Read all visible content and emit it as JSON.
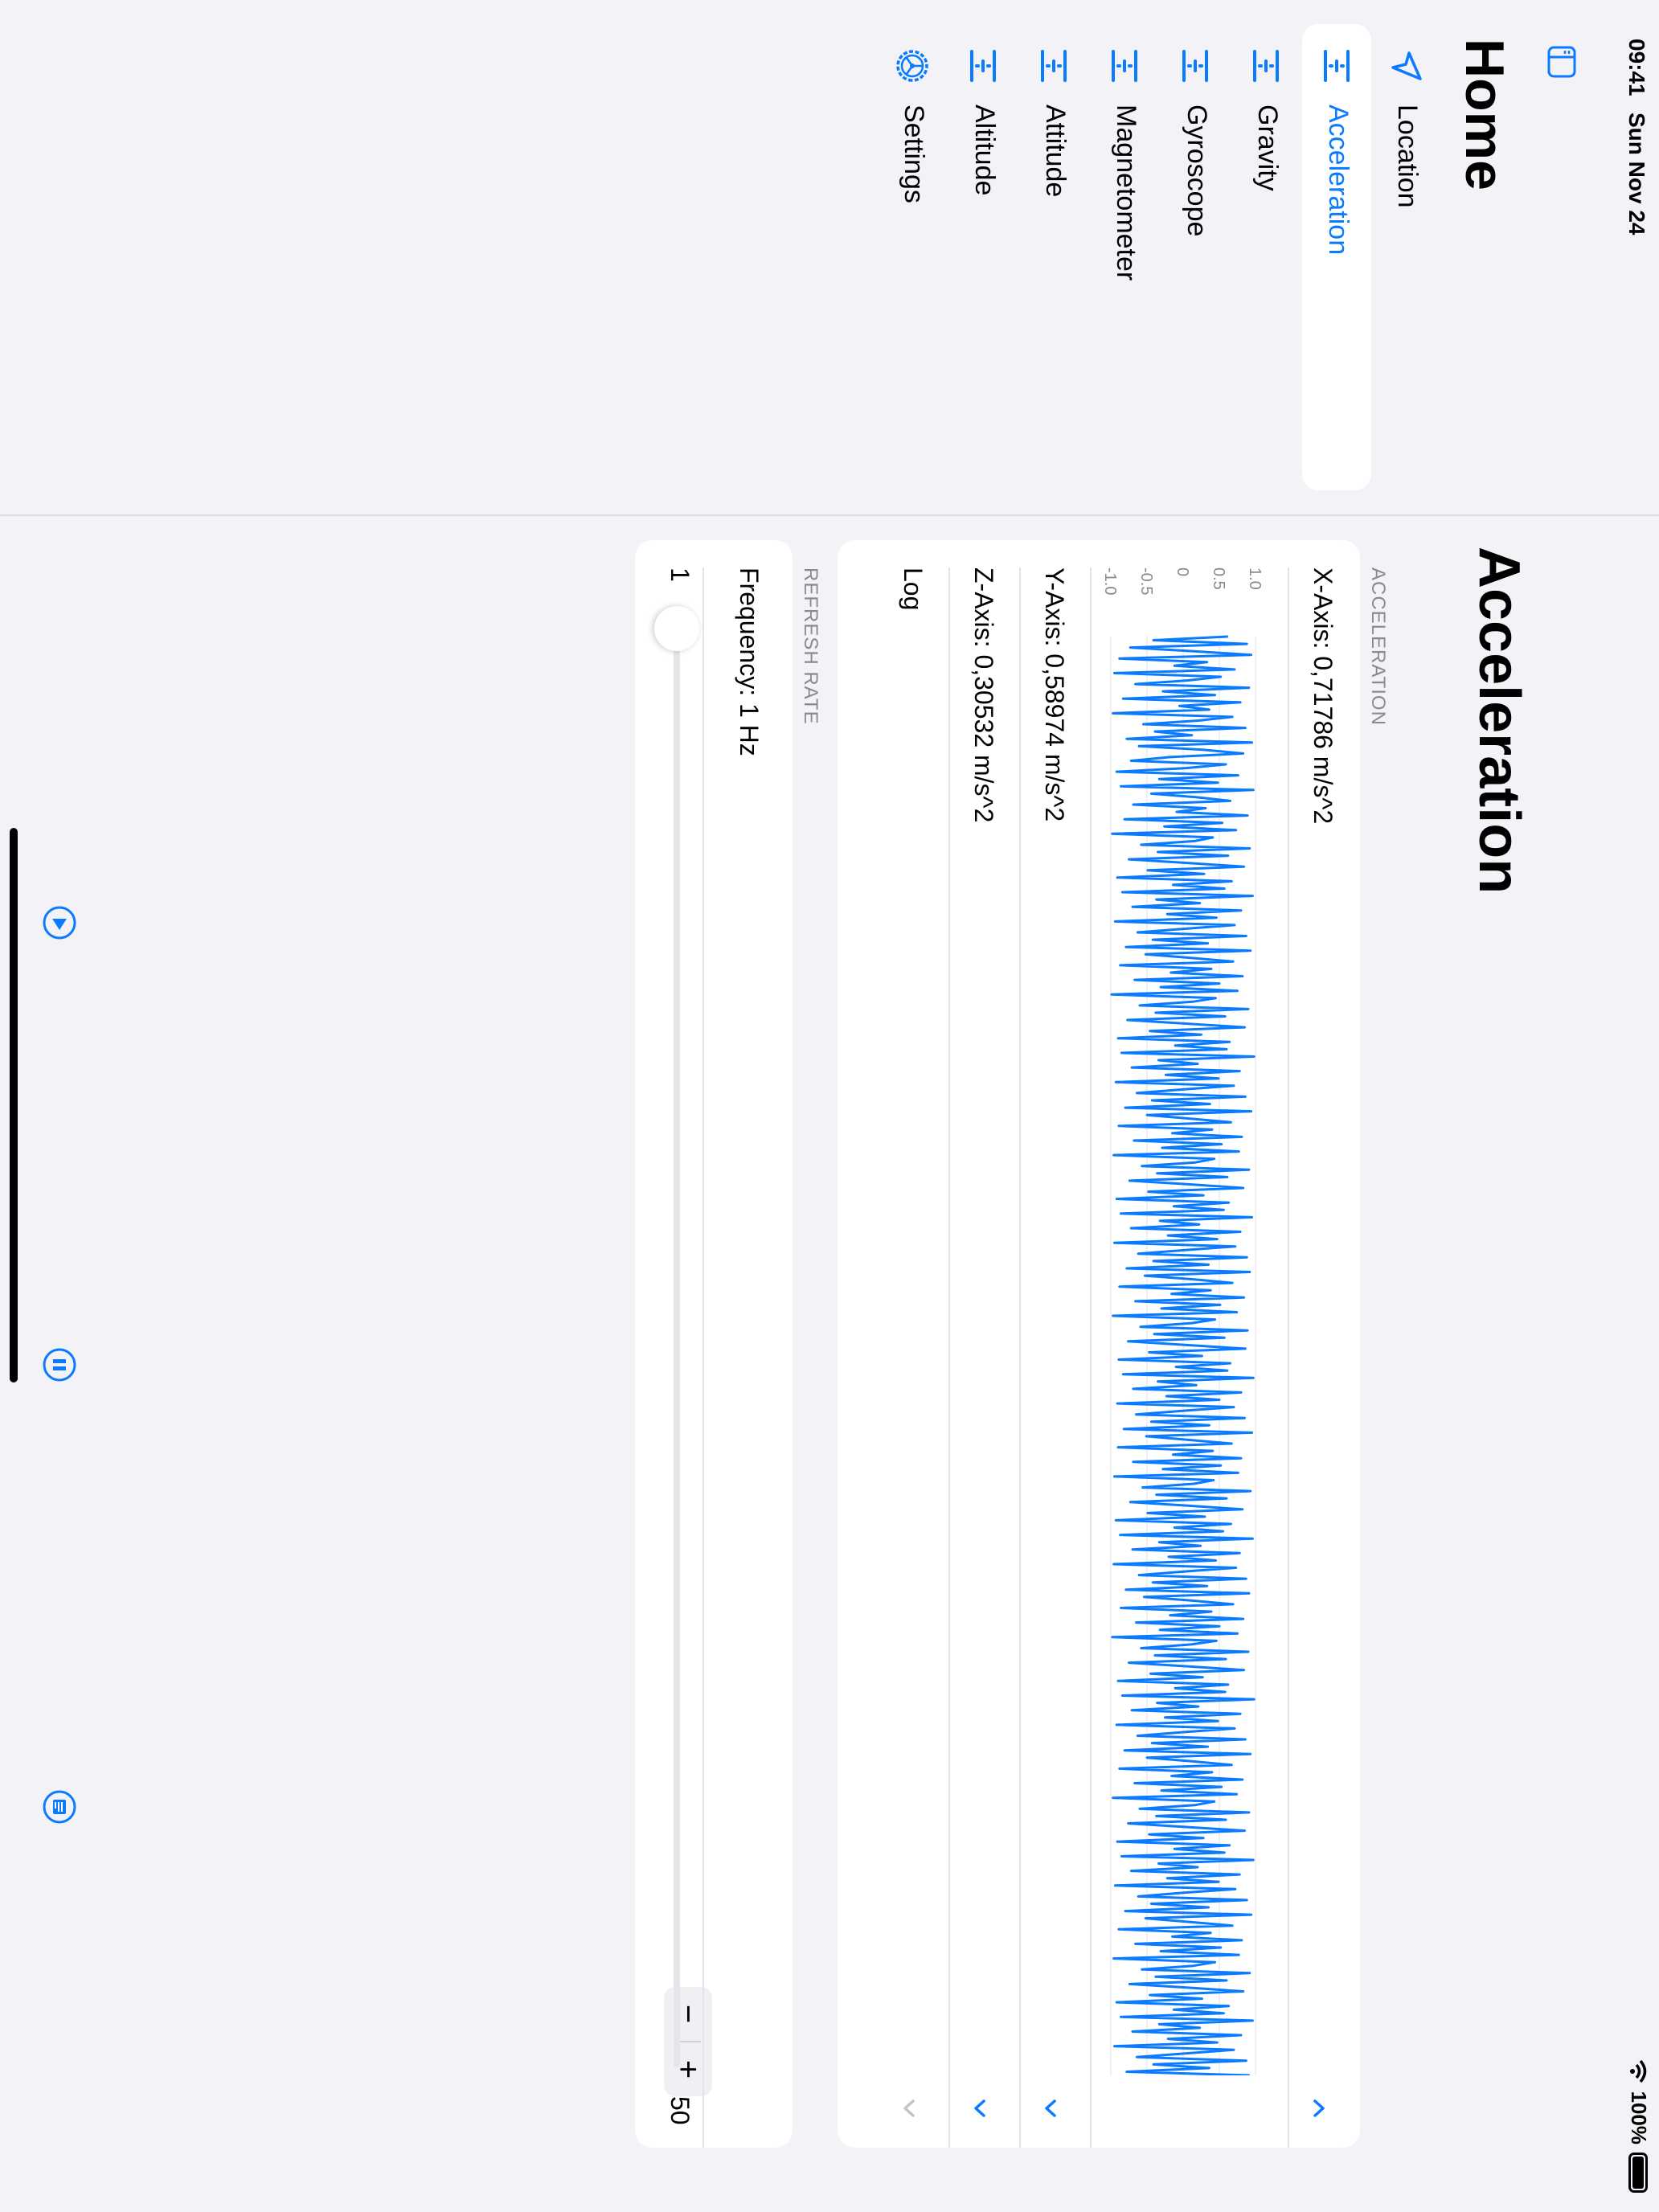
{
  "status": {
    "time": "09:41",
    "date": "Sun Nov 24",
    "battery": "100%"
  },
  "sidebar": {
    "title": "Home",
    "items": [
      {
        "label": "Location",
        "icon": "location-arrow-icon"
      },
      {
        "label": "Acceleration",
        "icon": "axis-icon",
        "selected": true
      },
      {
        "label": "Gravity",
        "icon": "axis-icon"
      },
      {
        "label": "Gyroscope",
        "icon": "axis-icon"
      },
      {
        "label": "Magnetometer",
        "icon": "axis-icon"
      },
      {
        "label": "Attitude",
        "icon": "axis-icon"
      },
      {
        "label": "Altitude",
        "icon": "axis-icon"
      },
      {
        "label": "Settings",
        "icon": "gear-icon"
      }
    ]
  },
  "main": {
    "title": "Acceleration",
    "acceleration_header": "ACCELERATION",
    "x_axis": "X-Axis: 0,71786 m/s^2",
    "y_axis": "Y-Axis: 0,58974 m/s^2",
    "z_axis": "Z-Axis: 0,30532 m/s^2",
    "log": "Log",
    "refresh_header": "REFRESH RATE",
    "frequency": "Frequency: 1 Hz",
    "stepper_minus": "−",
    "stepper_plus": "+",
    "slider_min": "1",
    "slider_max": "50",
    "slider_value": 1
  },
  "chart_data": {
    "type": "line",
    "yticks": [
      "1.0",
      "0.5",
      "0",
      "-0.5",
      "-1.0"
    ],
    "ylim": [
      -1.0,
      1.0
    ],
    "series": [
      {
        "values": [
          0.62,
          -0.41,
          0.88,
          -0.73,
          0.15,
          0.94,
          -0.88,
          0.33,
          -0.12,
          0.71,
          -0.95,
          0.52,
          0.07,
          -0.66,
          0.91,
          -0.28,
          0.44,
          -0.83,
          0.79,
          -0.05,
          0.36,
          -0.97,
          0.68,
          0.21,
          -0.55,
          0.86,
          -0.39,
          0.12,
          -0.78,
          0.95,
          -0.61,
          0.27,
          0.83,
          -0.18,
          -0.72,
          0.59,
          0.04,
          -0.92,
          0.76,
          -0.33,
          0.48,
          -0.86,
          0.97,
          -0.44,
          0.19,
          0.65,
          -0.69,
          0.31,
          -0.09,
          0.89,
          -0.81,
          0.54,
          -0.26,
          0.73,
          -0.98,
          0.41,
          0.16,
          -0.58,
          0.92,
          -0.35,
          0.62,
          -0.75,
          0.08,
          0.84,
          -0.49,
          0.29,
          -0.91,
          0.67,
          -0.14,
          0.57,
          -0.84,
          0.96,
          -0.37,
          0.23,
          -0.7,
          0.8,
          -0.22,
          0.46,
          -0.94,
          0.71,
          0.02,
          -0.63,
          0.87,
          -0.42,
          0.34,
          -0.79,
          0.93,
          -0.52,
          0.11,
          0.69,
          -0.87,
          0.39,
          -0.17,
          0.82,
          -0.67,
          0.5,
          -0.31,
          0.75,
          -0.99,
          0.45,
          0.13,
          -0.6,
          0.9,
          -0.38,
          0.58,
          -0.77,
          0.06,
          0.85,
          -0.46,
          0.25,
          -0.9,
          0.64,
          -0.11,
          0.6,
          -0.85,
          0.98,
          -0.34,
          0.2,
          -0.71,
          0.78,
          -0.24,
          0.49,
          -0.93,
          0.7,
          0.0,
          -0.64,
          0.86,
          -0.43,
          0.37,
          -0.8,
          0.94,
          -0.5,
          0.1,
          0.66,
          -0.89,
          0.4,
          -0.15,
          0.81,
          -0.68,
          0.53,
          -0.29,
          0.77,
          -0.96,
          0.43,
          0.17,
          -0.57,
          0.91,
          -0.36,
          0.61,
          -0.74,
          0.09,
          0.83,
          -0.48,
          0.28,
          -0.92,
          0.63,
          -0.13,
          0.56,
          -0.86,
          0.95,
          -0.32,
          0.22,
          -0.72,
          0.79,
          -0.21,
          0.47,
          -0.95,
          0.72,
          0.03,
          -0.62,
          0.88,
          -0.41,
          0.35,
          -0.78,
          0.92,
          -0.53,
          0.14,
          0.68,
          -0.88,
          0.38,
          -0.16,
          0.84,
          -0.66,
          0.51,
          -0.3,
          0.74,
          -0.97,
          0.44,
          0.12,
          -0.59,
          0.89,
          -0.4,
          0.57,
          -0.76,
          0.05,
          0.86,
          -0.47,
          0.26,
          -0.89,
          0.65,
          -0.1,
          0.61,
          -0.83,
          0.97,
          -0.35,
          0.18,
          -0.69,
          0.8,
          -0.23,
          0.5,
          -0.91,
          0.7,
          0.01,
          -0.65,
          0.85,
          -0.44,
          0.36,
          -0.82,
          0.95,
          -0.51,
          0.09,
          0.67,
          -0.9,
          0.41,
          -0.14,
          0.8,
          -0.69,
          0.52,
          -0.28,
          0.76,
          -0.95,
          0.42,
          0.15,
          -0.56,
          0.93,
          -0.37,
          0.6,
          -0.73,
          0.07,
          0.82,
          -0.49,
          0.3,
          -0.93,
          0.66,
          -0.12,
          0.55,
          -0.87,
          0.96,
          -0.33,
          0.24,
          -0.7,
          0.78,
          -0.2,
          0.45,
          -0.96,
          0.73,
          0.04,
          -0.61,
          0.87,
          -0.42,
          0.33,
          -0.79,
          0.91,
          -0.54,
          0.13,
          0.69,
          -0.86,
          0.39,
          -0.18,
          0.83,
          -0.65,
          0.5,
          -0.32,
          0.75,
          -0.98,
          0.46,
          0.11,
          -0.58,
          0.9,
          -0.39,
          0.59,
          -0.75,
          0.08,
          0.84,
          -0.45,
          0.27,
          -0.9,
          0.62,
          -0.11,
          0.58,
          -0.84,
          0.98,
          -0.36,
          0.21,
          -0.71,
          0.79,
          -0.25,
          0.48,
          -0.92,
          0.71,
          0.02,
          -0.63,
          0.86,
          -0.43,
          0.34,
          -0.81,
          0.93,
          -0.5,
          0.12,
          0.67,
          -0.88,
          0.4,
          -0.16,
          0.82,
          -0.67,
          0.53,
          -0.3,
          0.74,
          -0.97,
          0.43,
          0.16,
          -0.6,
          0.91,
          -0.37,
          0.59,
          -0.76,
          0.06,
          0.85,
          -0.47,
          0.28,
          -0.91,
          0.64,
          -0.12,
          0.57,
          -0.85,
          0.97,
          -0.34,
          0.2,
          -0.72,
          0.78,
          -0.22,
          0.49,
          -0.94,
          0.72,
          0.01,
          -0.62,
          0.88,
          -0.44,
          0.35,
          -0.8,
          0.94,
          -0.52,
          0.1,
          0.68,
          -0.89,
          0.38,
          -0.15,
          0.81,
          -0.66,
          0.52,
          -0.31,
          0.77,
          -0.96,
          0.44,
          0.14,
          -0.57,
          0.92,
          -0.38,
          0.6,
          -0.74,
          0.09,
          0.83,
          -0.46,
          0.26,
          -0.92,
          0.63,
          -0.13,
          0.56,
          -0.86,
          0.96,
          -0.33,
          0.23,
          -0.7,
          0.8,
          -0.21,
          0.47,
          -0.95,
          0.7,
          0.03,
          -0.64,
          0.87,
          -0.41,
          0.36,
          -0.78,
          0.92
        ]
      }
    ]
  }
}
